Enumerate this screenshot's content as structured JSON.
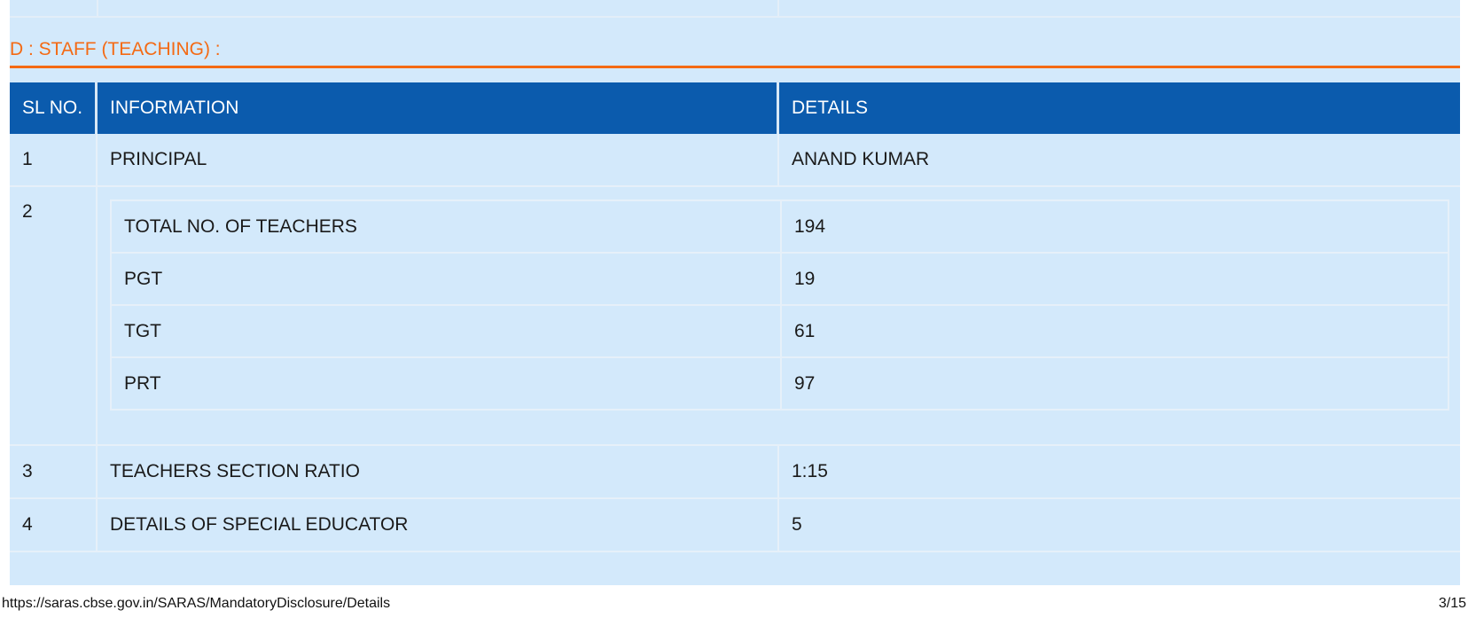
{
  "section": {
    "title": "D : STAFF (TEACHING) :"
  },
  "table": {
    "headers": [
      "SL NO.",
      "INFORMATION",
      "DETAILS"
    ],
    "rows": [
      {
        "sl": "1",
        "info": "PRINCIPAL",
        "details": "ANAND KUMAR"
      },
      {
        "sl": "2",
        "nested": [
          {
            "label": "TOTAL NO. OF TEACHERS",
            "value": "194"
          },
          {
            "label": "PGT",
            "value": "19"
          },
          {
            "label": "TGT",
            "value": "61"
          },
          {
            "label": "PRT",
            "value": "97"
          }
        ]
      },
      {
        "sl": "3",
        "info": "TEACHERS SECTION RATIO",
        "details": "1:15"
      },
      {
        "sl": "4",
        "info": "DETAILS OF SPECIAL EDUCATOR",
        "details": "5"
      }
    ]
  },
  "footer": {
    "url": "https://saras.cbse.gov.in/SARAS/MandatoryDisclosure/Details",
    "page": "3/15"
  },
  "colors": {
    "accent": "#f46a14",
    "header_bg": "#0b5bad",
    "panel_bg": "#d3e9fb"
  }
}
